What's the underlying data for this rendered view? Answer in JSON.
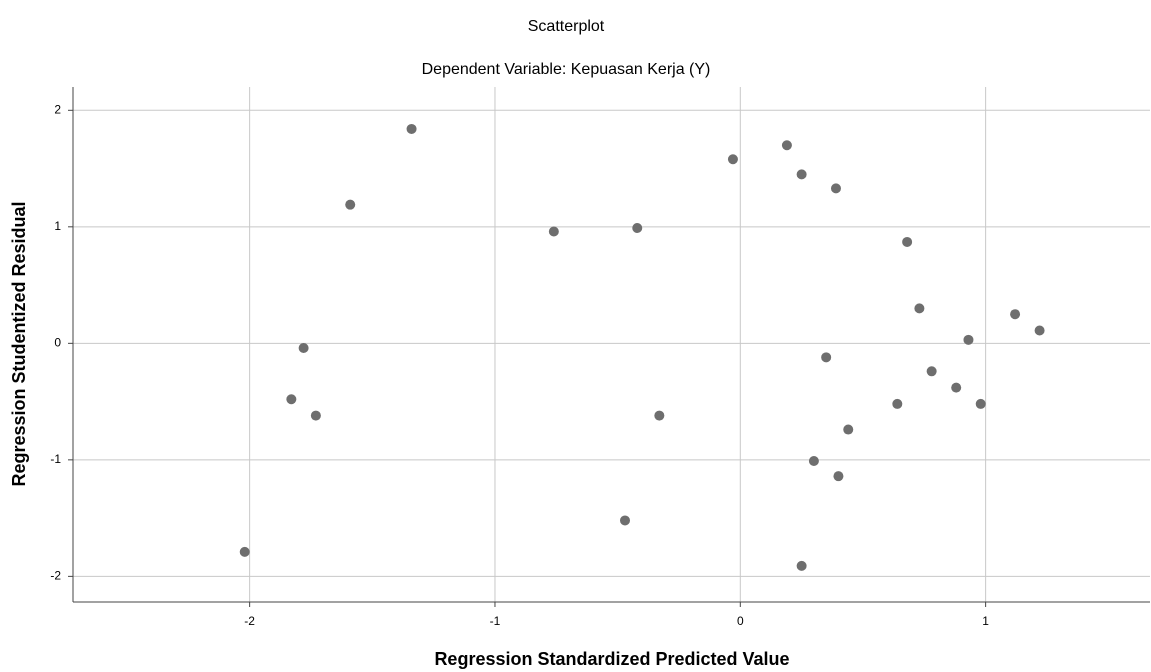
{
  "chart_data": {
    "type": "scatter",
    "title": "Scatterplot",
    "subtitle": "Dependent Variable: Kepuasan Kerja (Y)",
    "x_label": "Regression Standardized Predicted Value",
    "y_label": "Regression Studentized Residual",
    "color": "#6e6e6e",
    "grid": true,
    "xlim": [
      -2.72,
      1.67
    ],
    "ylim": [
      -2.22,
      2.2
    ],
    "xticks": [
      -2,
      -1,
      0,
      1
    ],
    "yticks": [
      -2,
      -1,
      0,
      1,
      2
    ],
    "x": [
      -2.02,
      -1.83,
      -1.78,
      -1.73,
      -1.59,
      -1.34,
      -0.76,
      -0.47,
      -0.42,
      -0.33,
      -0.03,
      0.19,
      0.25,
      0.25,
      0.3,
      0.35,
      0.39,
      0.4,
      0.44,
      0.64,
      0.68,
      0.73,
      0.78,
      0.88,
      0.93,
      0.98,
      1.12,
      1.22
    ],
    "values": [
      -1.79,
      -0.48,
      -0.04,
      -0.62,
      1.19,
      1.84,
      0.96,
      -1.52,
      0.99,
      -0.62,
      1.58,
      1.7,
      1.45,
      -1.91,
      -1.01,
      -0.12,
      1.33,
      -1.14,
      -0.74,
      -0.52,
      0.87,
      0.3,
      -0.24,
      -0.38,
      0.03,
      -0.52,
      0.25,
      0.11
    ]
  }
}
